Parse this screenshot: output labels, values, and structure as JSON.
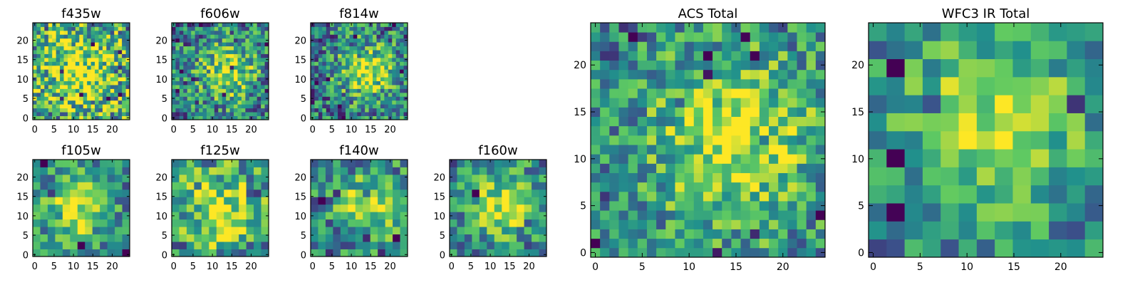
{
  "chart_data": [
    {
      "type": "heatmap",
      "title": "f435w",
      "nx": 25,
      "ny": 25,
      "xticks": [
        0,
        5,
        10,
        15,
        20
      ],
      "yticks": [
        0,
        5,
        10,
        15,
        20
      ],
      "xlim": [
        -0.5,
        24.5
      ],
      "ylim": [
        -0.5,
        24.5
      ],
      "grid": false,
      "colormap": [
        "#440154",
        "#3b528b",
        "#21918c",
        "#5ec962",
        "#fde725"
      ],
      "peak": [
        12,
        12
      ],
      "spread": 10,
      "noise": 0.55
    },
    {
      "type": "heatmap",
      "title": "f606w",
      "nx": 25,
      "ny": 25,
      "xticks": [
        0,
        5,
        10,
        15,
        20
      ],
      "yticks": [
        0,
        5,
        10,
        15,
        20
      ],
      "xlim": [
        -0.5,
        24.5
      ],
      "ylim": [
        -0.5,
        24.5
      ],
      "grid": false,
      "colormap": [
        "#440154",
        "#3b528b",
        "#21918c",
        "#5ec962",
        "#fde725"
      ],
      "peak": [
        14,
        12
      ],
      "spread": 5,
      "noise": 0.45
    },
    {
      "type": "heatmap",
      "title": "f814w",
      "nx": 25,
      "ny": 25,
      "xticks": [
        0,
        5,
        10,
        15,
        20
      ],
      "yticks": [
        0,
        5,
        10,
        15,
        20
      ],
      "xlim": [
        -0.5,
        24.5
      ],
      "ylim": [
        -0.5,
        24.5
      ],
      "grid": false,
      "colormap": [
        "#440154",
        "#3b528b",
        "#21918c",
        "#5ec962",
        "#fde725"
      ],
      "peak": [
        14,
        12
      ],
      "spread": 5,
      "noise": 0.45
    },
    {
      "type": "heatmap",
      "title": "f105w",
      "nx": 13,
      "ny": 13,
      "xticks": [
        0,
        5,
        10,
        15,
        20
      ],
      "yticks": [
        0,
        5,
        10,
        15,
        20
      ],
      "xlim": [
        -0.5,
        24.5
      ],
      "ylim": [
        -0.5,
        24.5
      ],
      "grid": false,
      "colormap": [
        "#440154",
        "#3b528b",
        "#21918c",
        "#5ec962",
        "#fde725"
      ],
      "peak": [
        11,
        12
      ],
      "spread": 6,
      "noise": 0.35
    },
    {
      "type": "heatmap",
      "title": "f125w",
      "nx": 13,
      "ny": 13,
      "xticks": [
        0,
        5,
        10,
        15,
        20
      ],
      "yticks": [
        0,
        5,
        10,
        15,
        20
      ],
      "xlim": [
        -0.5,
        24.5
      ],
      "ylim": [
        -0.5,
        24.5
      ],
      "grid": false,
      "colormap": [
        "#440154",
        "#3b528b",
        "#21918c",
        "#5ec962",
        "#fde725"
      ],
      "peak": [
        13,
        12
      ],
      "spread": 8,
      "noise": 0.45
    },
    {
      "type": "heatmap",
      "title": "f140w",
      "nx": 13,
      "ny": 13,
      "xticks": [
        0,
        5,
        10,
        15,
        20
      ],
      "yticks": [
        0,
        5,
        10,
        15,
        20
      ],
      "xlim": [
        -0.5,
        24.5
      ],
      "ylim": [
        -0.5,
        24.5
      ],
      "grid": false,
      "colormap": [
        "#440154",
        "#3b528b",
        "#21918c",
        "#5ec962",
        "#fde725"
      ],
      "peak": [
        15,
        13
      ],
      "spread": 6,
      "noise": 0.4
    },
    {
      "type": "heatmap",
      "title": "f160w",
      "nx": 13,
      "ny": 13,
      "xticks": [
        0,
        5,
        10,
        15,
        20
      ],
      "yticks": [
        0,
        5,
        10,
        15,
        20
      ],
      "xlim": [
        -0.5,
        24.5
      ],
      "ylim": [
        -0.5,
        24.5
      ],
      "grid": false,
      "colormap": [
        "#440154",
        "#3b528b",
        "#21918c",
        "#5ec962",
        "#fde725"
      ],
      "peak": [
        14,
        13
      ],
      "spread": 6,
      "noise": 0.38
    },
    {
      "type": "heatmap",
      "title": "ACS Total",
      "nx": 25,
      "ny": 25,
      "xticks": [
        0,
        5,
        10,
        15,
        20
      ],
      "yticks": [
        0,
        5,
        10,
        15,
        20
      ],
      "xlim": [
        -0.5,
        24.5
      ],
      "ylim": [
        -0.5,
        24.5
      ],
      "grid": false,
      "colormap": [
        "#440154",
        "#3b528b",
        "#21918c",
        "#5ec962",
        "#fde725"
      ],
      "peak": [
        15,
        12
      ],
      "spread": 7,
      "noise": 0.38
    },
    {
      "type": "heatmap",
      "title": "WFC3 IR Total",
      "nx": 13,
      "ny": 13,
      "xticks": [
        0,
        5,
        10,
        15,
        20
      ],
      "yticks": [
        0,
        5,
        10,
        15,
        20
      ],
      "xlim": [
        -0.5,
        24.5
      ],
      "ylim": [
        -0.5,
        24.5
      ],
      "grid": false,
      "colormap": [
        "#440154",
        "#3b528b",
        "#21918c",
        "#5ec962",
        "#fde725"
      ],
      "peak": [
        13,
        14
      ],
      "spread": 7,
      "noise": 0.3
    }
  ]
}
